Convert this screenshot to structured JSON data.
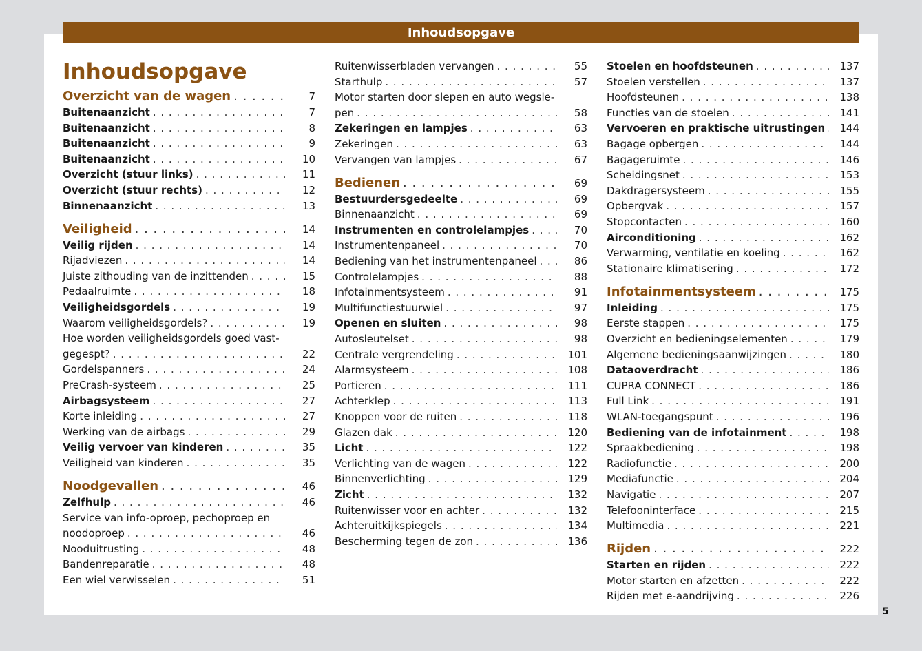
{
  "header": "Inhoudsopgave",
  "title": "Inhoudsopgave",
  "page_number": "5",
  "accent_color": "#8b5213",
  "columns": [
    [
      {
        "k": "section",
        "t": "Overzicht van de wagen",
        "p": "7",
        "first": true
      },
      {
        "k": "bold",
        "t": "Buitenaanzicht",
        "p": "7"
      },
      {
        "k": "bold",
        "t": "Buitenaanzicht",
        "p": "8"
      },
      {
        "k": "bold",
        "t": "Buitenaanzicht",
        "p": "9"
      },
      {
        "k": "bold",
        "t": "Buitenaanzicht",
        "p": "10"
      },
      {
        "k": "bold",
        "t": "Overzicht (stuur links)",
        "p": "11"
      },
      {
        "k": "bold",
        "t": "Overzicht (stuur rechts)",
        "p": "12"
      },
      {
        "k": "bold",
        "t": "Binnenaanzicht",
        "p": "13"
      },
      {
        "k": "section",
        "t": "Veiligheid",
        "p": "14"
      },
      {
        "k": "bold",
        "t": "Veilig rijden",
        "p": "14"
      },
      {
        "k": "normal",
        "t": "Rijadviezen",
        "p": "14"
      },
      {
        "k": "normal",
        "t": "Juiste zithouding van de inzittenden",
        "p": "15"
      },
      {
        "k": "normal",
        "t": "Pedaalruimte",
        "p": "18"
      },
      {
        "k": "bold",
        "t": "Veiligheidsgordels",
        "p": "19"
      },
      {
        "k": "normal",
        "t": "Waarom veiligheidsgordels?",
        "p": "19"
      },
      {
        "k": "normal",
        "pre": "Hoe worden veiligheidsgordels goed vast-",
        "t": "gegespt?",
        "p": "22"
      },
      {
        "k": "normal",
        "t": "Gordelspanners",
        "p": "24"
      },
      {
        "k": "normal",
        "t": "PreCrash-systeem",
        "p": "25"
      },
      {
        "k": "bold",
        "t": "Airbagsysteem",
        "p": "27"
      },
      {
        "k": "normal",
        "t": "Korte inleiding",
        "p": "27"
      },
      {
        "k": "normal",
        "t": "Werking van de airbags",
        "p": "29"
      },
      {
        "k": "bold",
        "t": "Veilig vervoer van kinderen",
        "p": "35"
      },
      {
        "k": "normal",
        "t": "Veiligheid van kinderen",
        "p": "35"
      },
      {
        "k": "section",
        "t": "Noodgevallen",
        "p": "46"
      },
      {
        "k": "bold",
        "t": "Zelfhulp",
        "p": "46"
      },
      {
        "k": "normal",
        "pre": "Service van info-oproep, pechoproep en",
        "t": "noodoproep",
        "p": "46"
      },
      {
        "k": "normal",
        "t": "Nooduitrusting",
        "p": "48"
      },
      {
        "k": "normal",
        "t": "Bandenreparatie",
        "p": "48"
      },
      {
        "k": "normal",
        "t": "Een wiel verwisselen",
        "p": "51"
      }
    ],
    [
      {
        "k": "normal",
        "t": "Ruitenwisserbladen vervangen",
        "p": "55"
      },
      {
        "k": "normal",
        "t": "Starthulp",
        "p": "57"
      },
      {
        "k": "normal",
        "pre": "Motor starten door slepen en auto wegsle-",
        "t": "pen",
        "p": "58"
      },
      {
        "k": "bold",
        "t": "Zekeringen en lampjes",
        "p": "63"
      },
      {
        "k": "normal",
        "t": "Zekeringen",
        "p": "63"
      },
      {
        "k": "normal",
        "t": "Vervangen van lampjes",
        "p": "67"
      },
      {
        "k": "section",
        "t": "Bedienen",
        "p": "69"
      },
      {
        "k": "bold",
        "t": "Bestuurdersgedeelte",
        "p": "69"
      },
      {
        "k": "normal",
        "t": "Binnenaanzicht",
        "p": "69"
      },
      {
        "k": "bold",
        "t": "Instrumenten en controlelampjes",
        "p": "70"
      },
      {
        "k": "normal",
        "t": "Instrumentenpaneel",
        "p": "70"
      },
      {
        "k": "normal",
        "t": "Bediening van het instrumentenpaneel",
        "p": "86"
      },
      {
        "k": "normal",
        "t": "Controlelampjes",
        "p": "88"
      },
      {
        "k": "normal",
        "t": "Infotainmentsysteem",
        "p": "91"
      },
      {
        "k": "normal",
        "t": "Multifunctiestuurwiel",
        "p": "97"
      },
      {
        "k": "bold",
        "t": "Openen en sluiten",
        "p": "98"
      },
      {
        "k": "normal",
        "t": "Autosleutelset",
        "p": "98"
      },
      {
        "k": "normal",
        "t": "Centrale vergrendeling",
        "p": "101"
      },
      {
        "k": "normal",
        "t": "Alarmsysteem",
        "p": "108"
      },
      {
        "k": "normal",
        "t": "Portieren",
        "p": "111"
      },
      {
        "k": "normal",
        "t": "Achterklep",
        "p": "113"
      },
      {
        "k": "normal",
        "t": "Knoppen voor de ruiten",
        "p": "118"
      },
      {
        "k": "normal",
        "t": "Glazen dak",
        "p": "120"
      },
      {
        "k": "bold",
        "t": "Licht",
        "p": "122"
      },
      {
        "k": "normal",
        "t": "Verlichting van de wagen",
        "p": "122"
      },
      {
        "k": "normal",
        "t": "Binnenverlichting",
        "p": "129"
      },
      {
        "k": "bold",
        "t": "Zicht",
        "p": "132"
      },
      {
        "k": "normal",
        "t": "Ruitenwisser voor en achter",
        "p": "132"
      },
      {
        "k": "normal",
        "t": "Achteruitkijkspiegels",
        "p": "134"
      },
      {
        "k": "normal",
        "t": "Bescherming tegen de zon",
        "p": "136"
      }
    ],
    [
      {
        "k": "bold",
        "t": "Stoelen en hoofdsteunen",
        "p": "137"
      },
      {
        "k": "normal",
        "t": "Stoelen verstellen",
        "p": "137"
      },
      {
        "k": "normal",
        "t": "Hoofdsteunen",
        "p": "138"
      },
      {
        "k": "normal",
        "t": "Functies van de stoelen",
        "p": "141"
      },
      {
        "k": "bold",
        "t": "Vervoeren en praktische uitrustingen",
        "p": "144"
      },
      {
        "k": "normal",
        "t": "Bagage opbergen",
        "p": "144"
      },
      {
        "k": "normal",
        "t": "Bagageruimte",
        "p": "146"
      },
      {
        "k": "normal",
        "t": "Scheidingsnet",
        "p": "153"
      },
      {
        "k": "normal",
        "t": "Dakdragersysteem",
        "p": "155"
      },
      {
        "k": "normal",
        "t": "Opbergvak",
        "p": "157"
      },
      {
        "k": "normal",
        "t": "Stopcontacten",
        "p": "160"
      },
      {
        "k": "bold",
        "t": "Airconditioning",
        "p": "162"
      },
      {
        "k": "normal",
        "t": "Verwarming, ventilatie en koeling",
        "p": "162"
      },
      {
        "k": "normal",
        "t": "Stationaire klimatisering",
        "p": "172"
      },
      {
        "k": "section",
        "t": "Infotainmentsysteem",
        "p": "175"
      },
      {
        "k": "bold",
        "t": "Inleiding",
        "p": "175"
      },
      {
        "k": "normal",
        "t": "Eerste stappen",
        "p": "175"
      },
      {
        "k": "normal",
        "t": "Overzicht en bedieningselementen",
        "p": "179"
      },
      {
        "k": "normal",
        "t": "Algemene bedieningsaanwijzingen",
        "p": "180"
      },
      {
        "k": "bold",
        "t": "Dataoverdracht",
        "p": "186"
      },
      {
        "k": "normal",
        "t": "CUPRA CONNECT",
        "p": "186"
      },
      {
        "k": "normal",
        "t": "Full Link",
        "p": "191"
      },
      {
        "k": "normal",
        "t": "WLAN-toegangspunt",
        "p": "196"
      },
      {
        "k": "bold",
        "t": "Bediening van de infotainment",
        "p": "198"
      },
      {
        "k": "normal",
        "t": "Spraakbediening",
        "p": "198"
      },
      {
        "k": "normal",
        "t": "Radiofunctie",
        "p": "200"
      },
      {
        "k": "normal",
        "t": "Mediafunctie",
        "p": "204"
      },
      {
        "k": "normal",
        "t": "Navigatie",
        "p": "207"
      },
      {
        "k": "normal",
        "t": "Telefooninterface",
        "p": "215"
      },
      {
        "k": "normal",
        "t": "Multimedia",
        "p": "221"
      },
      {
        "k": "section",
        "t": "Rijden",
        "p": "222"
      },
      {
        "k": "bold",
        "t": "Starten en rijden",
        "p": "222"
      },
      {
        "k": "normal",
        "t": "Motor starten en afzetten",
        "p": "222"
      },
      {
        "k": "normal",
        "t": "Rijden met e-aandrijving",
        "p": "226"
      }
    ]
  ]
}
